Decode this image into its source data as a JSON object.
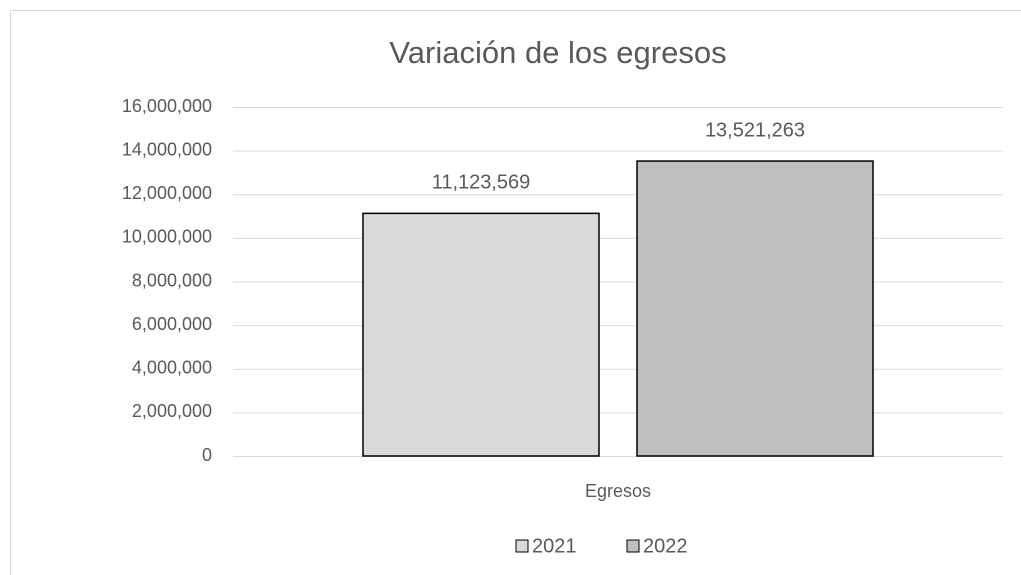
{
  "chart_data": {
    "type": "bar",
    "title": "Variación de los egresos",
    "categories": [
      "Egresos"
    ],
    "series": [
      {
        "name": "2021",
        "color": "#d9d9d9",
        "values": [
          11123569
        ],
        "value_labels": [
          "11,123,569"
        ]
      },
      {
        "name": "2022",
        "color": "#bfbfbf",
        "values": [
          13521263
        ],
        "value_labels": [
          "13,521,263"
        ]
      }
    ],
    "ylim": [
      0,
      16000000
    ],
    "yticks": [
      0,
      {
        "value": 2000000,
        "label": "2,000,000"
      },
      {
        "value": 4000000,
        "label": "4,000,000"
      },
      {
        "value": 6000000,
        "label": "6,000,000"
      },
      {
        "value": 8000000,
        "label": "8,000,000"
      },
      {
        "value": 10000000,
        "label": "10,000,000"
      },
      {
        "value": 12000000,
        "label": "12,000,000"
      },
      {
        "value": 14000000,
        "label": "14,000,000"
      },
      {
        "value": 16000000,
        "label": "16,000,000"
      }
    ],
    "grid": true,
    "legend": "bottom"
  }
}
